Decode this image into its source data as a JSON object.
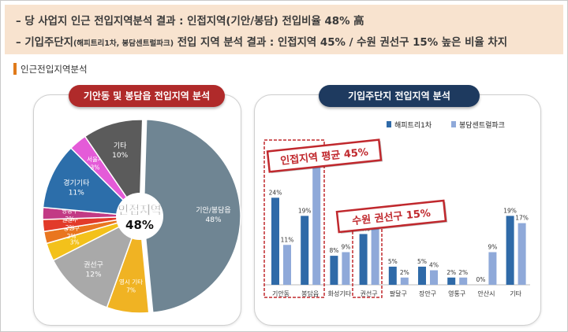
{
  "banner": {
    "line1": "– 당 사업지 인근 전입지역분석 결과 : 인접지역(기안/봉담) 전입비율 48% 高",
    "line2_a": "– 기입주단지",
    "line2_small": "(해피트리1차, 봉담센트럴파크)",
    "line2_b": " 전입 지역 분석 결과 : 인접지역 45% / 수원 권선구 15% 높은 비율 차지"
  },
  "section_title": "인근전입지역분석",
  "colors": {
    "banner_bg": "#f8e3cf",
    "pill_left": "#b02a2a",
    "pill_right": "#1e3a5f",
    "series_dark": "#2f6aa8",
    "series_light": "#8fa9d9",
    "callout": "#c0282d"
  },
  "chart_data": [
    {
      "type": "pie",
      "title": "기안동 및 봉담읍 전입지역 분석",
      "center_label": [
        "인접지역",
        "48%"
      ],
      "slices": [
        {
          "name": "기안/봉담읍",
          "value": 48,
          "label": "48%",
          "color": "#6f8593"
        },
        {
          "name": "영시 기타",
          "value": 7,
          "label": "7%",
          "color": "#f0b323"
        },
        {
          "name": "권선구",
          "value": 12,
          "label": "12%",
          "color": "#a9a9a9"
        },
        {
          "name": "",
          "value": 3,
          "label": "3%",
          "color": "#f3c11b"
        },
        {
          "name": "장안구",
          "value": 2,
          "label": "2%",
          "color": "#e9761f"
        },
        {
          "name": "팔달구",
          "value": 2,
          "label": "2%",
          "color": "#e23b2a"
        },
        {
          "name": "영통구",
          "value": 2,
          "label": "2%",
          "color": "#c23a85"
        },
        {
          "name": "경기기타",
          "value": 11,
          "label": "11%",
          "color": "#2c6eaa"
        },
        {
          "name": "서울시",
          "value": 3,
          "label": "3%",
          "color": "#e45bd8"
        },
        {
          "name": "기타",
          "value": 10,
          "label": "10%",
          "color": "#5b5b5b"
        }
      ]
    },
    {
      "type": "bar",
      "title": "기입주단지 전입지역 분석",
      "categories": [
        "기안동",
        "봉담읍",
        "화성기타",
        "권선구",
        "팔달구",
        "장안구",
        "영통구",
        "안산시",
        "기타"
      ],
      "series": [
        {
          "name": "해피트리1차",
          "values": [
            24,
            19,
            8,
            14,
            5,
            5,
            2,
            0,
            19
          ]
        },
        {
          "name": "봉담센트럴파크",
          "values": [
            11,
            34,
            9,
            17,
            2,
            4,
            2,
            9,
            17
          ]
        }
      ],
      "data_labels": [
        [
          "24%",
          "19%",
          "8%",
          "14%",
          "5%",
          "5%",
          "2%",
          "0%",
          "19%"
        ],
        [
          "11%",
          "34%",
          "9%",
          "17%",
          "2%",
          "4%",
          "2%",
          "9%",
          "17%"
        ]
      ],
      "ylim": [
        0,
        36
      ],
      "callouts": [
        "인접지역 평균 45%",
        "수원 권선구 15%"
      ]
    }
  ]
}
